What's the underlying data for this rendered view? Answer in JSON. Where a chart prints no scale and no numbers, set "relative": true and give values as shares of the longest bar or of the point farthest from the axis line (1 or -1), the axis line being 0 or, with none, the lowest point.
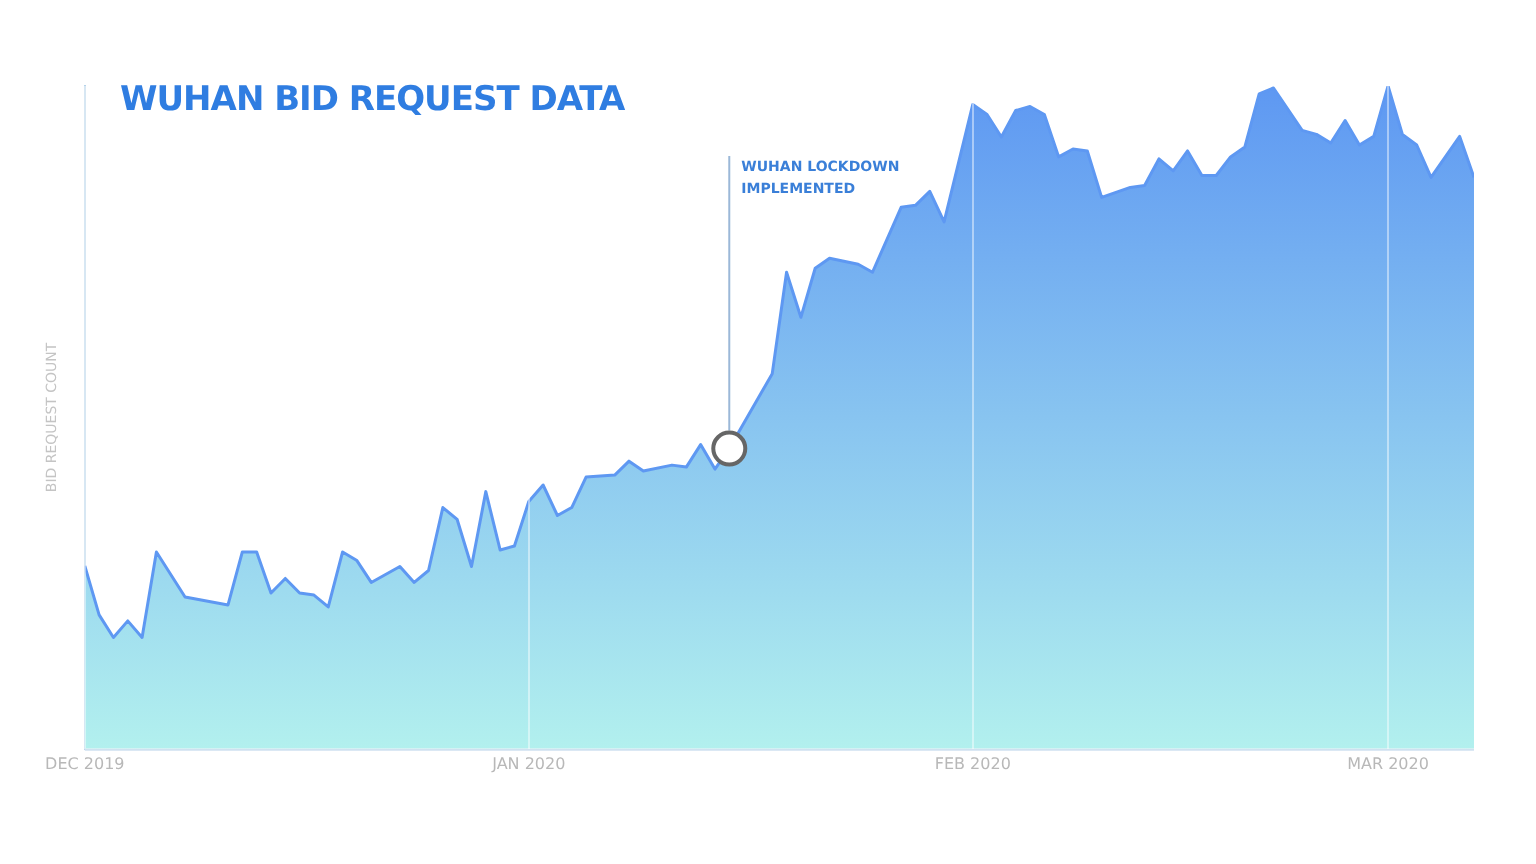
{
  "chart_data": {
    "type": "area",
    "title": "WUHAN BID REQUEST DATA",
    "ylabel": "BID REQUEST COUNT",
    "relative": true,
    "grid": "x",
    "legend": false,
    "x": [
      "2019-12-01",
      "2019-12-02",
      "2019-12-03",
      "2019-12-04",
      "2019-12-05",
      "2019-12-06",
      "2019-12-08",
      "2019-12-11",
      "2019-12-12",
      "2019-12-13",
      "2019-12-14",
      "2019-12-15",
      "2019-12-16",
      "2019-12-17",
      "2019-12-18",
      "2019-12-19",
      "2019-12-20",
      "2019-12-21",
      "2019-12-23",
      "2019-12-24",
      "2019-12-25",
      "2019-12-26",
      "2019-12-27",
      "2019-12-28",
      "2019-12-29",
      "2019-12-30",
      "2019-12-31",
      "2020-01-01",
      "2020-01-02",
      "2020-01-03",
      "2020-01-04",
      "2020-01-05",
      "2020-01-07",
      "2020-01-08",
      "2020-01-09",
      "2020-01-11",
      "2020-01-12",
      "2020-01-13",
      "2020-01-14",
      "2020-01-15",
      "2020-01-18",
      "2020-01-19",
      "2020-01-20",
      "2020-01-21",
      "2020-01-22",
      "2020-01-24",
      "2020-01-25",
      "2020-01-27",
      "2020-01-28",
      "2020-01-29",
      "2020-01-30",
      "2020-02-01",
      "2020-02-02",
      "2020-02-03",
      "2020-02-04",
      "2020-02-05",
      "2020-02-06",
      "2020-02-07",
      "2020-02-08",
      "2020-02-09",
      "2020-02-10",
      "2020-02-12",
      "2020-02-13",
      "2020-02-14",
      "2020-02-15",
      "2020-02-16",
      "2020-02-17",
      "2020-02-18",
      "2020-02-19",
      "2020-02-20",
      "2020-02-21",
      "2020-02-22",
      "2020-02-24",
      "2020-02-25",
      "2020-02-26",
      "2020-02-27",
      "2020-02-28",
      "2020-02-29",
      "2020-03-01",
      "2020-03-02",
      "2020-03-03",
      "2020-03-04",
      "2020-03-06",
      "2020-03-07"
    ],
    "series": [
      {
        "color": "#5e98f2",
        "values": [
          0.276,
          0.202,
          0.168,
          0.193,
          0.168,
          0.297,
          0.229,
          0.217,
          0.297,
          0.297,
          0.235,
          0.257,
          0.235,
          0.232,
          0.214,
          0.297,
          0.284,
          0.251,
          0.275,
          0.251,
          0.269,
          0.364,
          0.346,
          0.275,
          0.388,
          0.3,
          0.306,
          0.373,
          0.398,
          0.352,
          0.364,
          0.41,
          0.413,
          0.434,
          0.419,
          0.428,
          0.425,
          0.459,
          0.422,
          0.453,
          0.566,
          0.719,
          0.651,
          0.725,
          0.74,
          0.731,
          0.719,
          0.817,
          0.82,
          0.841,
          0.795,
          0.972,
          0.957,
          0.923,
          0.963,
          0.969,
          0.957,
          0.893,
          0.905,
          0.902,
          0.832,
          0.847,
          0.85,
          0.89,
          0.872,
          0.902,
          0.865,
          0.865,
          0.893,
          0.908,
          0.988,
          0.997,
          0.933,
          0.927,
          0.914,
          0.948,
          0.911,
          0.924,
          1.0,
          0.927,
          0.911,
          0.862,
          0.924,
          0.862
        ]
      }
    ],
    "xlim": [
      "2019-12-01",
      "2020-03-07"
    ],
    "xticks": [
      {
        "value": "2019-12-01",
        "label": "DEC 2019"
      },
      {
        "value": "2020-01-01",
        "label": "JAN 2020"
      },
      {
        "value": "2020-02-01",
        "label": "FEB 2020"
      },
      {
        "value": "2020-03-01",
        "label": "MAR 2020"
      }
    ],
    "ref_lines": [
      {
        "axis": "x",
        "value": "2020-01-15",
        "label": "WUHAN LOCKDOWN IMPLEMENTED",
        "color": "#9bb8d8"
      }
    ]
  }
}
